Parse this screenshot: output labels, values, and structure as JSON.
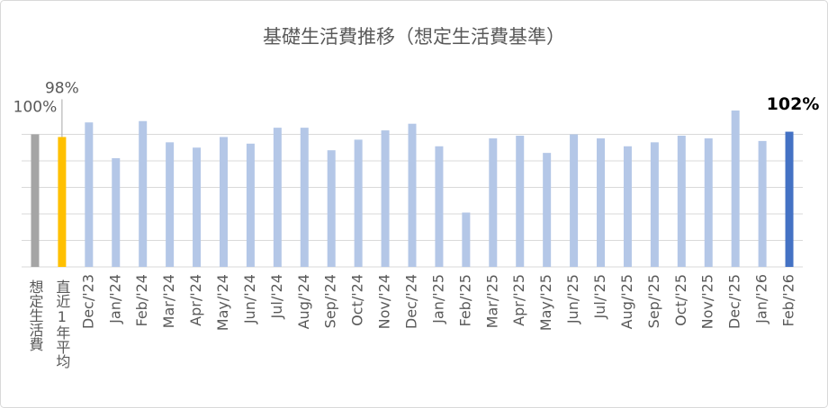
{
  "chart_data": {
    "type": "bar",
    "title": "基礎生活費推移（想定生活費基準）",
    "categories": [
      "想定生活費",
      "直近1年平均",
      "Dec/'23",
      "Jan/'24",
      "Feb/'24",
      "Mar/'24",
      "Apr/'24",
      "May/'24",
      "Jun/'24",
      "Jul/'24",
      "Aug/'24",
      "Sep/'24",
      "Oct/'24",
      "Nov/'24",
      "Dec/'24",
      "Jan/'25",
      "Feb/'25",
      "Mar/'25",
      "Apr/'25",
      "May/'25",
      "Jun/'25",
      "Jul/'25",
      "Aug/'25",
      "Sep/'25",
      "Oct/'25",
      "Nov/'25",
      "Dec/'25",
      "Jan/'26",
      "Feb/'26"
    ],
    "values": [
      100,
      98,
      109,
      82,
      110,
      94,
      90,
      98,
      93,
      105,
      105,
      88,
      96,
      103,
      108,
      91,
      41,
      97,
      99,
      86,
      100,
      97,
      91,
      94,
      99,
      97,
      118,
      95,
      102
    ],
    "value_labels": [
      "100%",
      "98%",
      null,
      null,
      null,
      null,
      null,
      null,
      null,
      null,
      null,
      null,
      null,
      null,
      null,
      null,
      null,
      null,
      null,
      null,
      null,
      null,
      null,
      null,
      null,
      null,
      null,
      null,
      "102%"
    ],
    "colors": [
      "#a5a5a5",
      "#ffc000",
      "#b4c7e7",
      "#b4c7e7",
      "#b4c7e7",
      "#b4c7e7",
      "#b4c7e7",
      "#b4c7e7",
      "#b4c7e7",
      "#b4c7e7",
      "#b4c7e7",
      "#b4c7e7",
      "#b4c7e7",
      "#b4c7e7",
      "#b4c7e7",
      "#b4c7e7",
      "#b4c7e7",
      "#b4c7e7",
      "#b4c7e7",
      "#b4c7e7",
      "#b4c7e7",
      "#b4c7e7",
      "#b4c7e7",
      "#b4c7e7",
      "#b4c7e7",
      "#b4c7e7",
      "#b4c7e7",
      "#b4c7e7",
      "#4472c4"
    ],
    "ylim": [
      0,
      120
    ],
    "yticks": [
      0,
      20,
      40,
      60,
      80,
      100
    ],
    "grid": true,
    "show_y_tick_labels": false
  }
}
